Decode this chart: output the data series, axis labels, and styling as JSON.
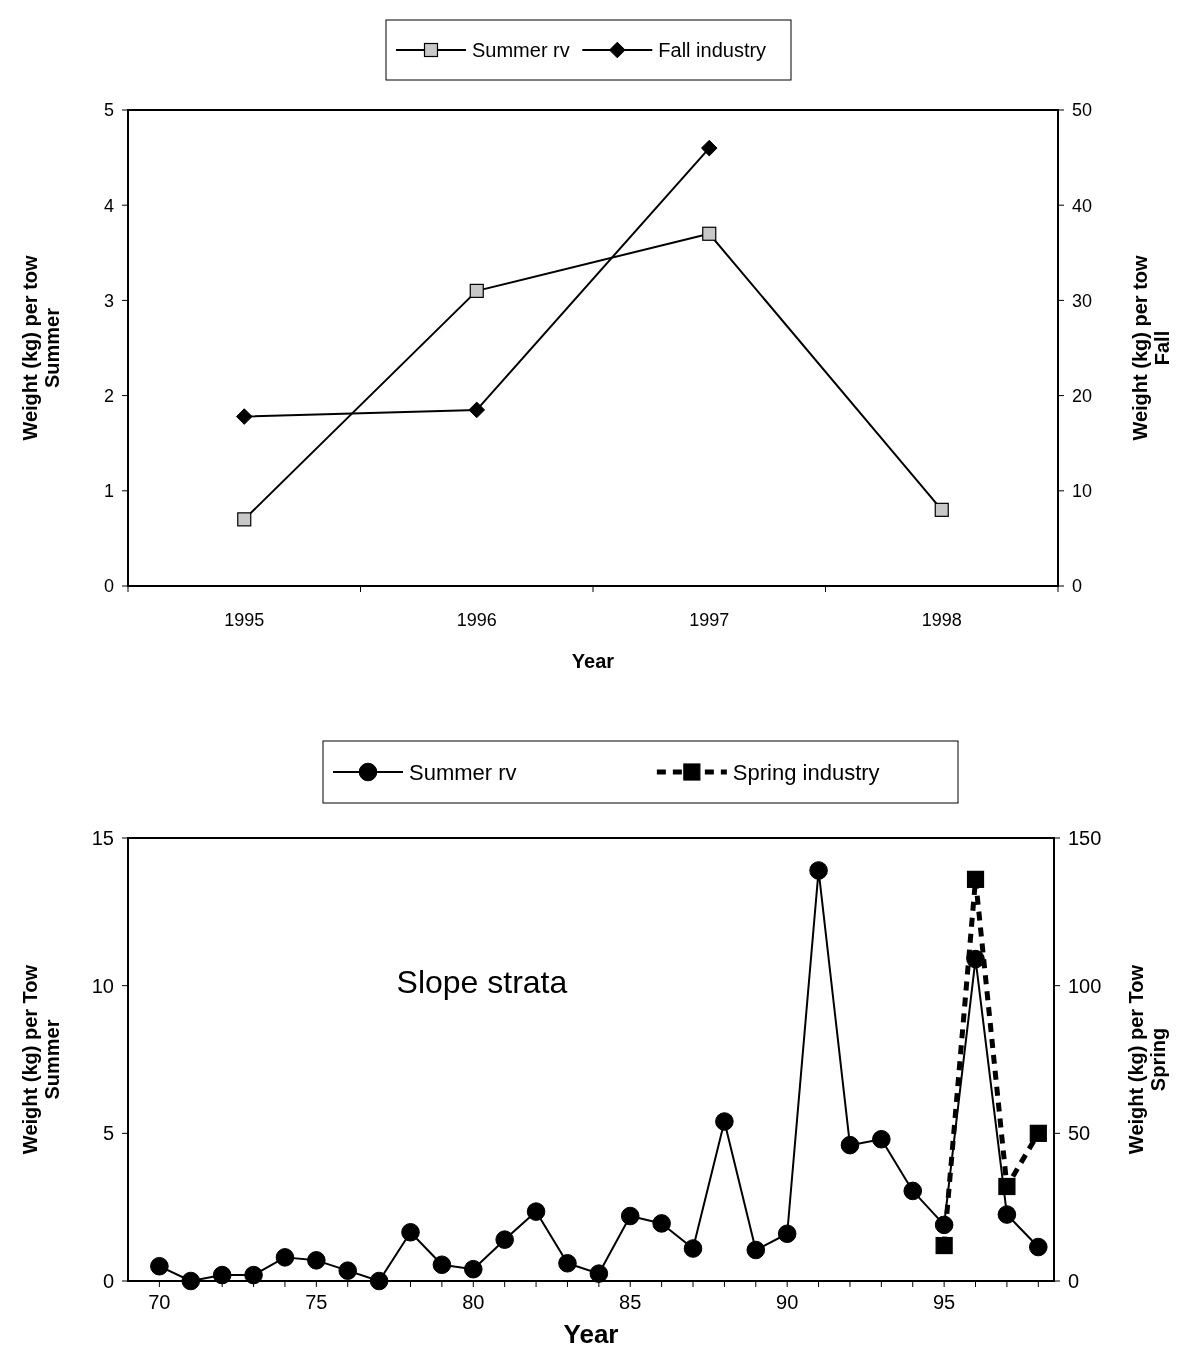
{
  "chart_data": [
    {
      "type": "line",
      "xlabel": "Year",
      "ylabel": "Weight (kg) per tow\nSummer",
      "y2label": "Weight (kg) per tow\nFall",
      "categories": [
        "1995",
        "1996",
        "1997",
        "1998"
      ],
      "ylim": [
        0,
        5
      ],
      "yticks": [
        0,
        1,
        2,
        3,
        4,
        5
      ],
      "y2lim": [
        0,
        50
      ],
      "y2ticks": [
        0,
        10,
        20,
        30,
        40,
        50
      ],
      "legend": "top",
      "grid": false,
      "series": [
        {
          "name": "Summer rv",
          "color": "#c8c8c8",
          "marker": "square",
          "line_style": "solid",
          "values": [
            0.7,
            3.1,
            3.7,
            0.8
          ]
        },
        {
          "name": "Fall industry",
          "color": "#000000",
          "marker": "diamond",
          "line_style": "solid",
          "axis": "y2",
          "values": [
            17.8,
            18.5,
            46,
            null
          ]
        }
      ]
    },
    {
      "type": "line",
      "xlabel": "Year",
      "ylabel": "Weight (kg) per Tow\nSummer",
      "y2label": "Weight (kg) per Tow\nSpring",
      "annotations": [
        "Slope strata"
      ],
      "xlim": [
        69,
        98.5
      ],
      "xticks": [
        70,
        {
          "value": 71,
          "label": null
        },
        {
          "value": 72,
          "label": null
        },
        {
          "value": 73,
          "label": null
        },
        {
          "value": 74,
          "label": null
        },
        75,
        {
          "value": 76,
          "label": null
        },
        {
          "value": 77,
          "label": null
        },
        {
          "value": 78,
          "label": null
        },
        {
          "value": 79,
          "label": null
        },
        80,
        {
          "value": 81,
          "label": null
        },
        {
          "value": 82,
          "label": null
        },
        {
          "value": 83,
          "label": null
        },
        {
          "value": 84,
          "label": null
        },
        85,
        {
          "value": 86,
          "label": null
        },
        {
          "value": 87,
          "label": null
        },
        {
          "value": 88,
          "label": null
        },
        {
          "value": 89,
          "label": null
        },
        90,
        {
          "value": 91,
          "label": null
        },
        {
          "value": 92,
          "label": null
        },
        {
          "value": 93,
          "label": null
        },
        {
          "value": 94,
          "label": null
        },
        95,
        {
          "value": 96,
          "label": null
        },
        {
          "value": 97,
          "label": null
        },
        {
          "value": 98,
          "label": null
        }
      ],
      "ylim": [
        0,
        15
      ],
      "yticks": [
        0,
        5,
        10,
        15
      ],
      "y2lim": [
        0,
        150
      ],
      "y2ticks": [
        0,
        50,
        100,
        150
      ],
      "legend": "top",
      "grid": false,
      "series": [
        {
          "name": "Summer rv",
          "color": "#000000",
          "marker": "circle",
          "line_style": "solid",
          "x": [
            70,
            71,
            72,
            73,
            74,
            75,
            76,
            77,
            78,
            79,
            80,
            81,
            82,
            83,
            84,
            85,
            86,
            87,
            88,
            89,
            90,
            91,
            92,
            93,
            94,
            95,
            96,
            97,
            98
          ],
          "values": [
            0.5,
            0,
            0.2,
            0.2,
            0.8,
            0.7,
            0.35,
            0,
            1.65,
            0.55,
            0.4,
            1.4,
            2.35,
            0.6,
            0.25,
            2.2,
            1.95,
            1.1,
            5.4,
            1.05,
            1.6,
            13.9,
            4.6,
            4.8,
            3.05,
            1.9,
            10.9,
            2.25,
            1.15
          ]
        },
        {
          "name": "Spring industry",
          "color": "#000000",
          "marker": "square",
          "line_style": "dashed",
          "axis": "y2",
          "x": [
            95,
            96,
            97,
            98
          ],
          "values": [
            12,
            136,
            32,
            50
          ]
        }
      ]
    }
  ]
}
